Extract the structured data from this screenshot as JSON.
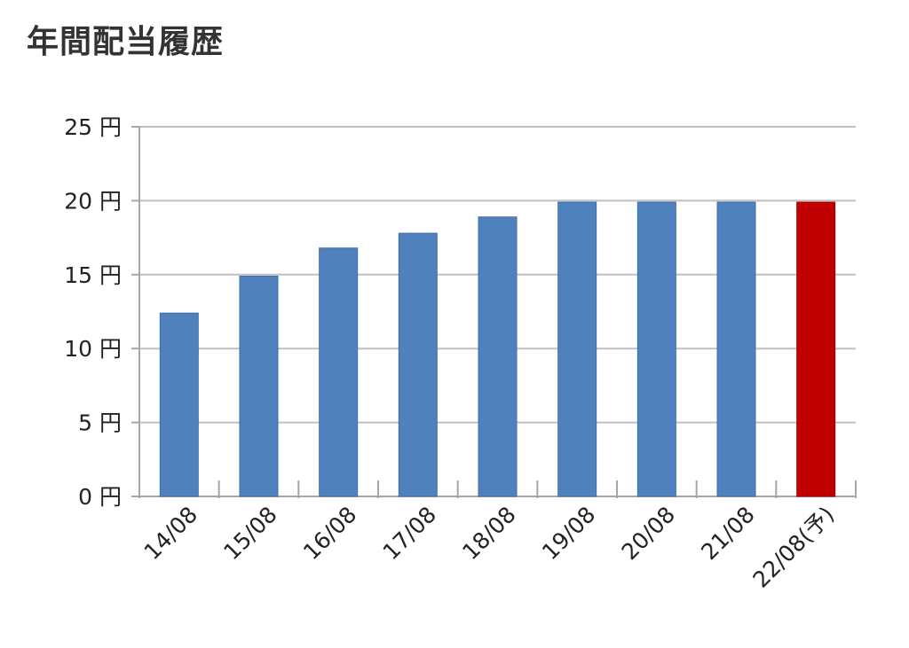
{
  "page": {
    "title": "年間配当履歴"
  },
  "colors": {
    "actual": "#4f81bd",
    "forecast": "#c00000",
    "grid": "#c0c0c0",
    "axis": "#a6a6a6"
  },
  "chart_data": {
    "type": "bar",
    "title": "年間配当履歴",
    "xlabel": "",
    "ylabel": "",
    "ylim": [
      0,
      25
    ],
    "y_ticks": [
      {
        "value": 0,
        "label": "0 円"
      },
      {
        "value": 5,
        "label": "5 円"
      },
      {
        "value": 10,
        "label": "10 円"
      },
      {
        "value": 15,
        "label": "15 円"
      },
      {
        "value": 20,
        "label": "20 円"
      },
      {
        "value": 25,
        "label": "25 円"
      }
    ],
    "categories": [
      "14/08",
      "15/08",
      "16/08",
      "17/08",
      "18/08",
      "19/08",
      "20/08",
      "21/08",
      "22/08(予)"
    ],
    "values": [
      12.4,
      14.9,
      16.8,
      17.8,
      18.9,
      19.9,
      19.9,
      19.9,
      19.9
    ],
    "forecast_index": [
      8
    ],
    "grid": true,
    "legend": "none"
  }
}
